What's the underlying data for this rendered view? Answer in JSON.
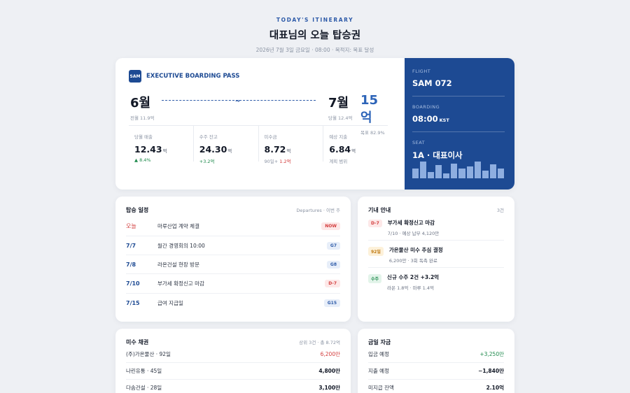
{
  "header": {
    "kicker": "TODAY'S ITINERARY",
    "title": "대표님의 오늘 탑승권",
    "subtitle": "2026년 7월 3일 금요일 · 08:00 · 목적지: 목표 달성"
  },
  "pass": {
    "logo": "SAM",
    "brand": "EXECUTIVE BOARDING PASS",
    "origin": {
      "month": "6월",
      "note": "전월 11.9억"
    },
    "destination": {
      "month": "7월",
      "note": "당월 12.4억"
    },
    "goal": {
      "value": "15억",
      "note": "목표 82.9%"
    },
    "plane_icon": "plane-icon",
    "stats": [
      {
        "label": "당월 매출",
        "value": "12.43",
        "unit": "억",
        "note": "▲ 8.4%"
      },
      {
        "label": "수주 잔고",
        "value": "24.30",
        "unit": "억",
        "note": "+3.2억"
      },
      {
        "label": "미수금",
        "value": "8.72",
        "unit": "억",
        "note_a": "90일+",
        "note_b": " 1.2억"
      },
      {
        "label": "예상 지출",
        "value": "6.84",
        "unit": "억",
        "note": "계획 범위"
      }
    ],
    "stub": {
      "flight_label": "FLIGHT",
      "flight": "SAM 072",
      "boarding_label": "BOARDING",
      "boarding": "08:00",
      "boarding_tz": "KST",
      "seat_label": "SEAT",
      "seat": "1A · 대표이사",
      "bar_levels": [
        0.55,
        0.95,
        0.35,
        0.75,
        0.3,
        0.85,
        0.55,
        0.7,
        0.95,
        0.45,
        0.8,
        0.55
      ]
    }
  },
  "itinerary": {
    "title": "탑승 일정",
    "meta": "Departures · 이번 주",
    "rows": [
      {
        "date": "오늘",
        "event": "마루산업 계약 체결",
        "tag": "NOW"
      },
      {
        "date": "7/7",
        "event": "월간 경영회의 10:00",
        "tag": "G7"
      },
      {
        "date": "7/8",
        "event": "라온건설 현장 방문",
        "tag": "G8"
      },
      {
        "date": "7/10",
        "event": "부가세 확정신고 마감",
        "tag": "D-7"
      },
      {
        "date": "7/15",
        "event": "급여 지급일",
        "tag": "G15"
      }
    ]
  },
  "notices": {
    "title": "기내 안내",
    "count": "3건",
    "items": [
      {
        "tag": "D-7",
        "title": "부가세 확정신고 마감",
        "sub": "7/10 · 예상 납부 4,120만"
      },
      {
        "tag": "92일",
        "title": "가온물산 미수 추심 결정",
        "sub": "6,200만 · 3회 독촉 완료"
      },
      {
        "tag": "수주",
        "title": "신규 수주 2건 +3.2억",
        "sub": "라온 1.8억 · 마루 1.4억"
      }
    ]
  },
  "receivables": {
    "title": "미수 채권",
    "meta": "상위 3건 · 총 8.72억",
    "rows": [
      {
        "name": "(주)가온물산 · 92일",
        "amount": "6,200만"
      },
      {
        "name": "나린유통 · 45일",
        "amount": "4,800만"
      },
      {
        "name": "다솜건설 · 28일",
        "amount": "3,100만"
      }
    ]
  },
  "cash": {
    "title": "금일 자금",
    "rows": [
      {
        "name": "입금 예정",
        "amount": "+3,250만"
      },
      {
        "name": "지출 예정",
        "amount": "−1,840만"
      },
      {
        "name": "미지급 잔액",
        "amount": "2.10억"
      }
    ]
  },
  "colors": {
    "accent": "#1d4a93",
    "positive": "#1e8a4c",
    "negative": "#d23b3b"
  }
}
